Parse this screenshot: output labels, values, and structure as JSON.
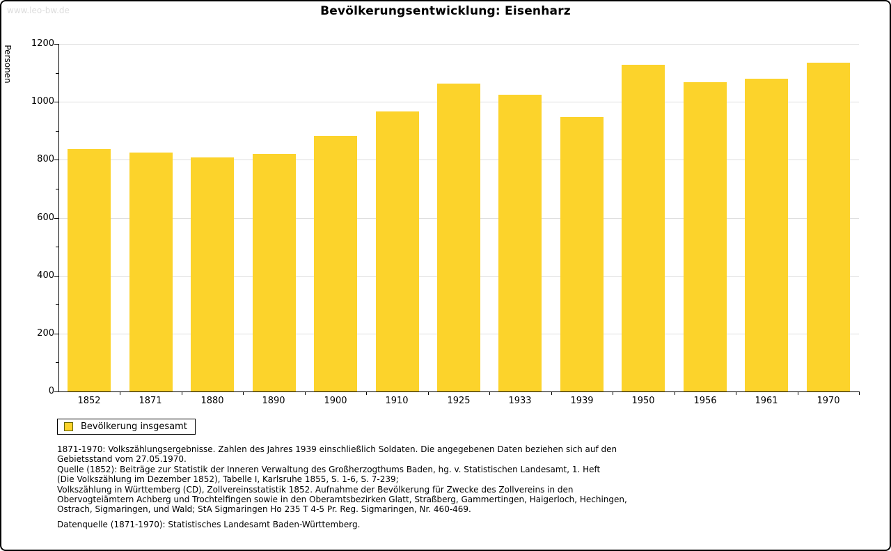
{
  "watermark": "www.leo-bw.de",
  "title": "Bevölkerungsentwicklung: Eisenharz",
  "chart_data": {
    "type": "bar",
    "title": "Bevölkerungsentwicklung: Eisenharz",
    "xlabel": "",
    "ylabel": "Personen",
    "ylim": [
      0,
      1200
    ],
    "ytick_step": 200,
    "minor_tick_step": 100,
    "grid": true,
    "legend_position": "bottom-left",
    "categories": [
      "1852",
      "1871",
      "1880",
      "1890",
      "1900",
      "1910",
      "1925",
      "1933",
      "1939",
      "1950",
      "1956",
      "1961",
      "1970"
    ],
    "values": [
      838,
      826,
      807,
      821,
      883,
      967,
      1062,
      1024,
      947,
      1127,
      1067,
      1079,
      1135
    ],
    "series_name": "Bevölkerung insgesamt",
    "legend": {
      "entries": [
        {
          "label": "Bevölkerung insgesamt",
          "color": "#FCD32B"
        }
      ]
    }
  },
  "footer": {
    "lines": [
      "1871-1970: Volkszählungsergebnisse. Zahlen des Jahres 1939 einschließlich Soldaten. Die angegebenen Daten beziehen sich auf den",
      "Gebietsstand vom 27.05.1970.",
      "Quelle (1852): Beiträge zur Statistik der Inneren Verwaltung des Großherzogthums Baden, hg. v. Statistischen Landesamt, 1. Heft",
      "(Die Volkszählung im Dezember 1852), Tabelle I, Karlsruhe 1855, S. 1-6, S. 7-239;",
      "Volkszählung in Württemberg (CD), Zollvereinsstatistik 1852. Aufnahme der Bevölkerung für Zwecke des Zollvereins in den",
      "Obervogteiämtern Achberg und Trochtelfingen sowie in den Oberamtsbezirken Glatt, Straßberg, Gammertingen, Haigerloch, Hechingen,",
      "Ostrach, Sigmaringen, und Wald; StA Sigmaringen Ho 235 T 4-5 Pr. Reg. Sigmaringen, Nr. 460-469."
    ],
    "datasource": "Datenquelle (1871-1970): Statistisches Landesamt Baden-Württemberg."
  },
  "colors": {
    "bar": "#FCD32B",
    "grid": "#DDDDDD",
    "axis": "#000000",
    "watermark": "#DDDDDD",
    "swatch_border": "#666600",
    "text": "#000000"
  }
}
